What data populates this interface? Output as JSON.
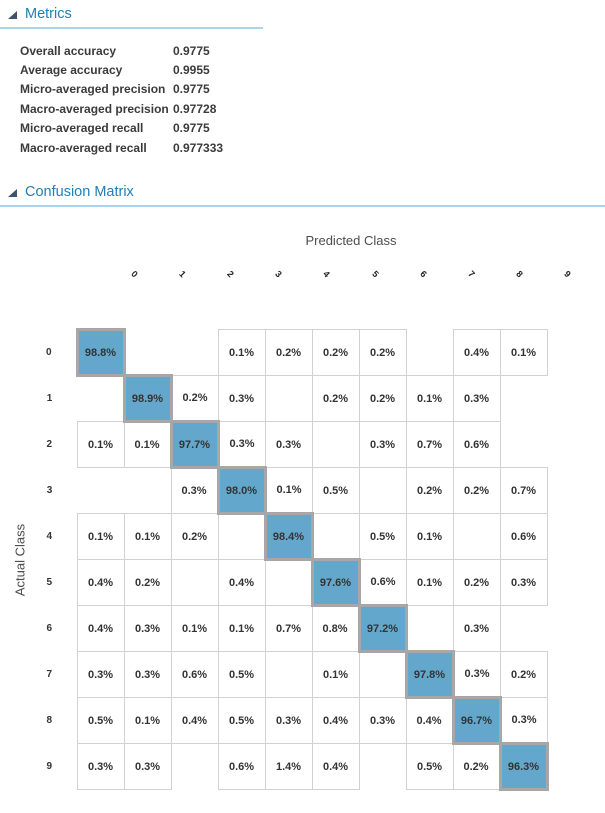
{
  "metrics": {
    "title": "Metrics",
    "rows": [
      {
        "label": "Overall accuracy",
        "value": "0.9775"
      },
      {
        "label": "Average accuracy",
        "value": "0.9955"
      },
      {
        "label": "Micro-averaged precision",
        "value": "0.9775"
      },
      {
        "label": "Macro-averaged precision",
        "value": "0.97728"
      },
      {
        "label": "Micro-averaged recall",
        "value": "0.9775"
      },
      {
        "label": "Macro-averaged recall",
        "value": "0.977333"
      }
    ]
  },
  "confusion_matrix": {
    "title": "Confusion Matrix",
    "x_axis_label": "Predicted Class",
    "y_axis_label": "Actual Class",
    "col_labels": [
      "0",
      "1",
      "2",
      "3",
      "4",
      "5",
      "6",
      "7",
      "8",
      "9"
    ],
    "row_labels": [
      "0",
      "1",
      "2",
      "3",
      "4",
      "5",
      "6",
      "7",
      "8",
      "9"
    ],
    "cells": [
      [
        "98.8%",
        "",
        "",
        "0.1%",
        "0.2%",
        "0.2%",
        "0.2%",
        "",
        "0.4%",
        "0.1%"
      ],
      [
        "",
        "98.9%",
        "0.2%",
        "0.3%",
        "",
        "0.2%",
        "0.2%",
        "0.1%",
        "0.3%",
        ""
      ],
      [
        "0.1%",
        "0.1%",
        "97.7%",
        "0.3%",
        "0.3%",
        "",
        "0.3%",
        "0.7%",
        "0.6%",
        ""
      ],
      [
        "",
        "",
        "0.3%",
        "98.0%",
        "0.1%",
        "0.5%",
        "",
        "0.2%",
        "0.2%",
        "0.7%"
      ],
      [
        "0.1%",
        "0.1%",
        "0.2%",
        "",
        "98.4%",
        "",
        "0.5%",
        "0.1%",
        "",
        "0.6%"
      ],
      [
        "0.4%",
        "0.2%",
        "",
        "0.4%",
        "",
        "97.6%",
        "0.6%",
        "0.1%",
        "0.2%",
        "0.3%"
      ],
      [
        "0.4%",
        "0.3%",
        "0.1%",
        "0.1%",
        "0.7%",
        "0.8%",
        "97.2%",
        "",
        "0.3%",
        ""
      ],
      [
        "0.3%",
        "0.3%",
        "0.6%",
        "0.5%",
        "",
        "0.1%",
        "",
        "97.8%",
        "0.3%",
        "0.2%"
      ],
      [
        "0.5%",
        "0.1%",
        "0.4%",
        "0.5%",
        "0.3%",
        "0.4%",
        "0.3%",
        "0.4%",
        "96.7%",
        "0.3%"
      ],
      [
        "0.3%",
        "0.3%",
        "",
        "0.6%",
        "1.4%",
        "0.4%",
        "",
        "0.5%",
        "0.2%",
        "96.3%"
      ]
    ]
  },
  "colors": {
    "header_blue": "#1f7fb4",
    "rule_blue": "#a9d5ea",
    "diagonal_fill": "#63a8cc",
    "diagonal_border": "#a7a7a7",
    "cell_border": "#d2d2d2",
    "cell_text": "#333333",
    "expander_triangle": "#3d5468"
  }
}
